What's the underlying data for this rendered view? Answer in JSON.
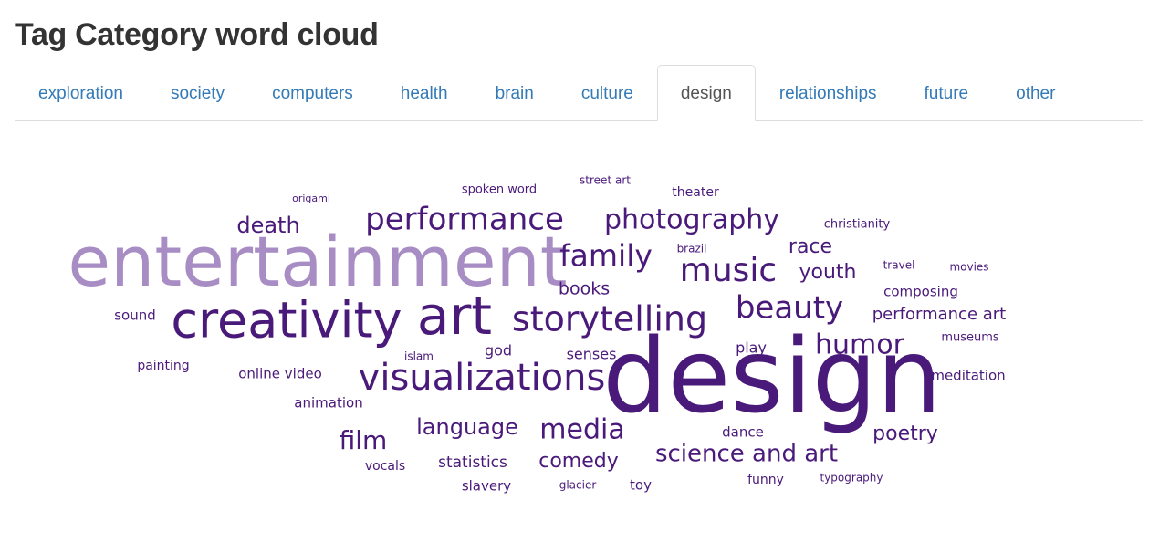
{
  "title": "Tag Category word cloud",
  "tabs": [
    {
      "label": "exploration",
      "active": false
    },
    {
      "label": "society",
      "active": false
    },
    {
      "label": "computers",
      "active": false
    },
    {
      "label": "health",
      "active": false
    },
    {
      "label": "brain",
      "active": false
    },
    {
      "label": "culture",
      "active": false
    },
    {
      "label": "design",
      "active": true
    },
    {
      "label": "relationships",
      "active": false
    },
    {
      "label": "future",
      "active": false
    },
    {
      "label": "other",
      "active": false
    }
  ],
  "colors": {
    "link": "#337ab7",
    "dark_purple": "#4a1a7a",
    "light_purple": "#a88cc4"
  },
  "word_cloud": {
    "words": [
      {
        "text": "design",
        "color": "#4a1a7a"
      },
      {
        "text": "entertainment",
        "color": "#a88cc4"
      },
      {
        "text": "creativity",
        "color": "#4a1a7a"
      },
      {
        "text": "art",
        "color": "#4a1a7a"
      },
      {
        "text": "storytelling",
        "color": "#4a1a7a"
      },
      {
        "text": "visualizations",
        "color": "#4a1a7a"
      },
      {
        "text": "performance",
        "color": "#4a1a7a"
      },
      {
        "text": "photography",
        "color": "#4a1a7a"
      },
      {
        "text": "music",
        "color": "#4a1a7a"
      },
      {
        "text": "family",
        "color": "#4a1a7a"
      },
      {
        "text": "beauty",
        "color": "#4a1a7a"
      },
      {
        "text": "humor",
        "color": "#4a1a7a"
      },
      {
        "text": "media",
        "color": "#4a1a7a"
      },
      {
        "text": "science and art",
        "color": "#4a1a7a"
      },
      {
        "text": "language",
        "color": "#4a1a7a"
      },
      {
        "text": "death",
        "color": "#4a1a7a"
      },
      {
        "text": "film",
        "color": "#4a1a7a"
      },
      {
        "text": "comedy",
        "color": "#4a1a7a"
      },
      {
        "text": "poetry",
        "color": "#4a1a7a"
      },
      {
        "text": "race",
        "color": "#4a1a7a"
      },
      {
        "text": "youth",
        "color": "#4a1a7a"
      },
      {
        "text": "books",
        "color": "#4a1a7a"
      },
      {
        "text": "performance art",
        "color": "#4a1a7a"
      },
      {
        "text": "statistics",
        "color": "#4a1a7a"
      },
      {
        "text": "senses",
        "color": "#4a1a7a"
      },
      {
        "text": "online video",
        "color": "#4a1a7a"
      },
      {
        "text": "animation",
        "color": "#4a1a7a"
      },
      {
        "text": "composing",
        "color": "#4a1a7a"
      },
      {
        "text": "meditation",
        "color": "#4a1a7a"
      },
      {
        "text": "sound",
        "color": "#4a1a7a"
      },
      {
        "text": "painting",
        "color": "#4a1a7a"
      },
      {
        "text": "god",
        "color": "#4a1a7a"
      },
      {
        "text": "play",
        "color": "#4a1a7a"
      },
      {
        "text": "dance",
        "color": "#4a1a7a"
      },
      {
        "text": "slavery",
        "color": "#4a1a7a"
      },
      {
        "text": "vocals",
        "color": "#4a1a7a"
      },
      {
        "text": "funny",
        "color": "#4a1a7a"
      },
      {
        "text": "toy",
        "color": "#4a1a7a"
      },
      {
        "text": "museums",
        "color": "#4a1a7a"
      },
      {
        "text": "theater",
        "color": "#4a1a7a"
      },
      {
        "text": "christianity",
        "color": "#4a1a7a"
      },
      {
        "text": "spoken word",
        "color": "#4a1a7a"
      },
      {
        "text": "street art",
        "color": "#4a1a7a"
      },
      {
        "text": "travel",
        "color": "#4a1a7a"
      },
      {
        "text": "movies",
        "color": "#4a1a7a"
      },
      {
        "text": "brazil",
        "color": "#4a1a7a"
      },
      {
        "text": "islam",
        "color": "#4a1a7a"
      },
      {
        "text": "typography",
        "color": "#4a1a7a"
      },
      {
        "text": "glacier",
        "color": "#4a1a7a"
      },
      {
        "text": "origami",
        "color": "#4a1a7a"
      }
    ]
  }
}
